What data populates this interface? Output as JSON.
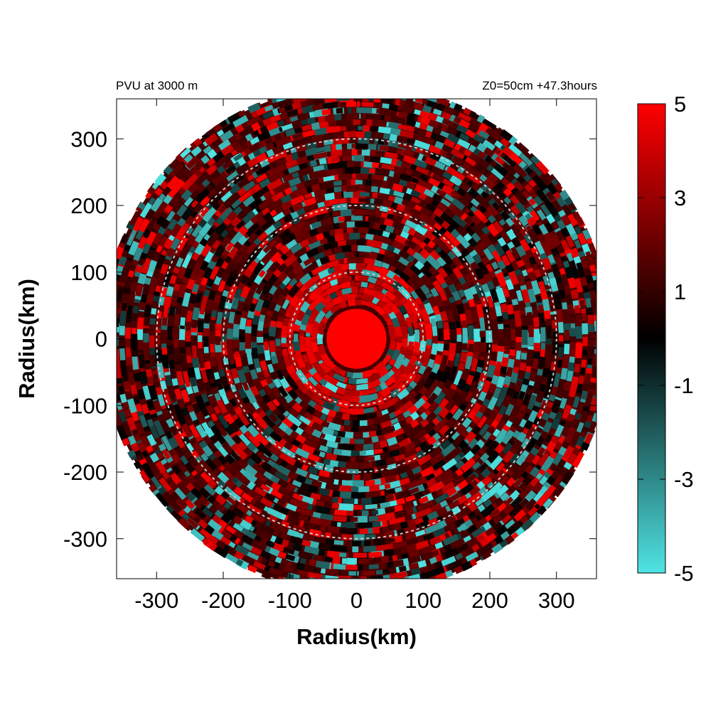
{
  "chart_data": {
    "type": "heatmap",
    "projection": "polar-disk",
    "title_left": "PVU at  3000 m",
    "title_right": "Z0=50cm  +47.3hours",
    "xlabel": "Radius(km)",
    "ylabel": "Radius(km)",
    "xlim": [
      -360,
      360
    ],
    "ylim": [
      -360,
      360
    ],
    "x_ticks": [
      -300,
      -200,
      -100,
      0,
      100,
      200,
      300
    ],
    "y_ticks": [
      -300,
      -200,
      -100,
      0,
      100,
      200,
      300
    ],
    "disk_radius_km": 380,
    "reference_circles_km": [
      100,
      200,
      300
    ],
    "colorbar": {
      "min": -5,
      "max": 5,
      "ticks": [
        5,
        3,
        1,
        -1,
        -3,
        -5
      ],
      "colors": {
        "low": "#4fe4e4",
        "mid": "#000000",
        "high": "#ff0000"
      }
    },
    "field": {
      "core": {
        "radius_km": 45,
        "value": 5
      },
      "background_value": 1.3
    }
  }
}
